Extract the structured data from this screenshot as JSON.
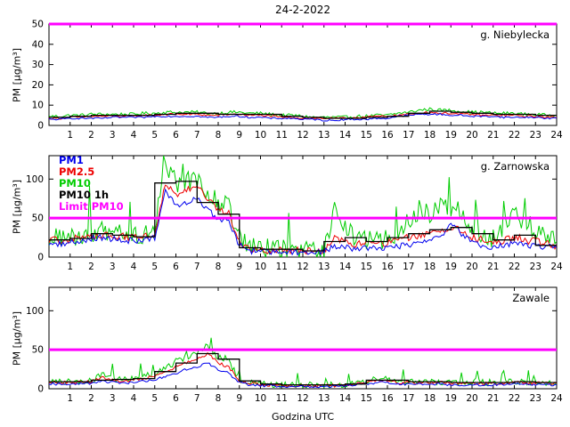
{
  "title": "24-2-2022",
  "xlabel": "Godzina UTC",
  "ylabel": "PM [µg/m³]",
  "colors": {
    "pm1": "#0000ee",
    "pm25": "#ee0000",
    "pm10": "#00cc00",
    "pm10_1h": "#000000",
    "limit": "#ff00ff",
    "frame": "#000000",
    "background": "#ffffff"
  },
  "legend": [
    {
      "label": "PM1",
      "color_key": "pm1"
    },
    {
      "label": "PM2.5",
      "color_key": "pm25"
    },
    {
      "label": "PM10",
      "color_key": "pm10"
    },
    {
      "label": "PM10 1h",
      "color_key": "pm10_1h"
    },
    {
      "label": "Limit PM10",
      "color_key": "limit"
    }
  ],
  "chart_data": [
    {
      "type": "line",
      "station": "g. Niebylecka",
      "ylim": [
        0,
        50
      ],
      "yticks": [
        0,
        10,
        20,
        30,
        40,
        50
      ],
      "xticks": [
        1,
        2,
        3,
        4,
        5,
        6,
        7,
        8,
        9,
        10,
        11,
        12,
        13,
        14,
        15,
        16,
        17,
        18,
        19,
        20,
        21,
        22,
        23,
        24
      ],
      "limit_value": 50,
      "x_start": 0,
      "x_step": 0.5,
      "series": [
        {
          "name": "PM10",
          "color_key": "pm10",
          "noise": 0.8,
          "spike": false,
          "values": [
            4.5,
            4.5,
            5,
            5,
            5.5,
            5.5,
            5.5,
            5.5,
            5.5,
            6,
            6,
            6.5,
            6.5,
            6.5,
            6.5,
            6,
            6,
            6.5,
            6.5,
            6,
            6,
            5.5,
            5,
            5,
            4.5,
            4,
            4,
            4,
            4,
            4.5,
            4.5,
            5,
            5,
            6,
            6.5,
            7.5,
            8,
            7.5,
            7.5,
            7,
            6.5,
            6.5,
            6,
            6,
            6,
            5.5,
            5.5,
            5,
            5
          ]
        },
        {
          "name": "PM2.5",
          "color_key": "pm25",
          "noise": 0.5,
          "spike": false,
          "values": [
            3.5,
            3.5,
            4,
            4,
            4.5,
            4.5,
            4.5,
            4.5,
            4.5,
            5,
            5,
            5.5,
            5.5,
            5.5,
            5.5,
            5,
            5,
            5.5,
            5.5,
            5,
            5,
            4.5,
            4,
            4,
            3.5,
            3.5,
            3.5,
            3.5,
            3.5,
            4,
            4,
            4.5,
            4.5,
            5,
            5.5,
            6,
            6.5,
            6,
            6,
            5.5,
            5.5,
            5,
            5,
            5,
            5,
            4.5,
            4.5,
            4,
            4
          ]
        },
        {
          "name": "PM1",
          "color_key": "pm1",
          "noise": 0.4,
          "spike": false,
          "values": [
            3,
            3,
            3.5,
            3.5,
            3.5,
            3.5,
            4,
            4,
            4,
            4,
            4.5,
            4.5,
            4.5,
            4.5,
            4.5,
            4,
            4,
            4.5,
            4.5,
            4,
            4,
            3.5,
            3.5,
            3.5,
            3,
            3,
            2.5,
            2.5,
            3,
            3,
            3,
            3.5,
            3.5,
            4.5,
            5,
            5.5,
            5.5,
            5.5,
            5,
            5,
            4.5,
            4.5,
            4.5,
            4,
            4,
            4,
            4,
            3.5,
            3.5
          ]
        }
      ],
      "step_series": {
        "name": "PM10 1h",
        "color_key": "pm10_1h",
        "values": [
          4,
          4.5,
          5,
          5,
          5,
          5.5,
          6,
          6,
          5.5,
          5.5,
          5.5,
          4.5,
          4,
          3.5,
          3.5,
          4,
          4.5,
          6,
          7,
          6.5,
          6,
          5.5,
          5.5,
          5
        ]
      }
    },
    {
      "type": "line",
      "station": "g. Zarnowska",
      "ylim": [
        0,
        130
      ],
      "yticks": [
        0,
        50,
        100
      ],
      "xticks": [
        1,
        2,
        3,
        4,
        5,
        6,
        7,
        8,
        9,
        10,
        11,
        12,
        13,
        14,
        15,
        16,
        17,
        18,
        19,
        20,
        21,
        22,
        23,
        24
      ],
      "limit_value": 50,
      "x_start": 0,
      "x_step": 0.5,
      "series": [
        {
          "name": "PM10",
          "color_key": "pm10",
          "noise": 13,
          "spike": true,
          "values": [
            25,
            24,
            26,
            27,
            32,
            33,
            30,
            29,
            28,
            28,
            35,
            120,
            95,
            100,
            95,
            85,
            70,
            65,
            25,
            12,
            12,
            11,
            10,
            10,
            9,
            9,
            10,
            60,
            40,
            20,
            22,
            20,
            25,
            30,
            45,
            60,
            55,
            70,
            65,
            55,
            35,
            30,
            25,
            40,
            55,
            35,
            30,
            25,
            20
          ]
        },
        {
          "name": "PM2.5",
          "color_key": "pm25",
          "noise": 5,
          "spike": false,
          "values": [
            22,
            21,
            23,
            24,
            28,
            29,
            27,
            26,
            25,
            25,
            30,
            95,
            80,
            85,
            90,
            75,
            60,
            55,
            20,
            10,
            10,
            9,
            9,
            9,
            8,
            8,
            9,
            25,
            20,
            16,
            17,
            16,
            18,
            20,
            25,
            28,
            30,
            35,
            38,
            35,
            25,
            22,
            18,
            22,
            25,
            22,
            20,
            18,
            15
          ]
        },
        {
          "name": "PM1",
          "color_key": "pm1",
          "noise": 4,
          "spike": false,
          "values": [
            18,
            17,
            19,
            20,
            24,
            25,
            23,
            22,
            21,
            21,
            25,
            85,
            65,
            70,
            75,
            60,
            50,
            45,
            15,
            8,
            8,
            7,
            7,
            7,
            6,
            6,
            7,
            15,
            12,
            11,
            12,
            11,
            12,
            14,
            16,
            18,
            20,
            25,
            45,
            30,
            18,
            15,
            12,
            15,
            18,
            15,
            14,
            13,
            12
          ]
        }
      ],
      "step_series": {
        "name": "PM10 1h",
        "color_key": "pm10_1h",
        "values": [
          22,
          24,
          30,
          28,
          26,
          95,
          97,
          70,
          55,
          12,
          10,
          10,
          8,
          20,
          25,
          20,
          25,
          30,
          35,
          38,
          30,
          22,
          28,
          15
        ]
      }
    },
    {
      "type": "line",
      "station": "Zawale",
      "ylim": [
        0,
        130
      ],
      "yticks": [
        0,
        50,
        100
      ],
      "xticks": [
        1,
        2,
        3,
        4,
        5,
        6,
        7,
        8,
        9,
        10,
        11,
        12,
        13,
        14,
        15,
        16,
        17,
        18,
        19,
        20,
        21,
        22,
        23,
        24
      ],
      "limit_value": 50,
      "x_start": 0,
      "x_step": 0.5,
      "series": [
        {
          "name": "PM10",
          "color_key": "pm10",
          "noise": 4,
          "spike": true,
          "values": [
            10,
            10,
            9,
            9,
            10,
            20,
            13,
            11,
            13,
            16,
            20,
            25,
            35,
            40,
            45,
            55,
            40,
            35,
            12,
            8,
            6,
            6,
            5,
            5,
            5,
            5,
            5,
            5,
            6,
            7,
            10,
            12,
            12,
            10,
            9,
            9,
            9,
            9,
            8,
            8,
            8,
            8,
            8,
            8,
            9,
            9,
            8,
            8,
            8
          ]
        },
        {
          "name": "PM2.5",
          "color_key": "pm25",
          "noise": 2,
          "spike": false,
          "values": [
            8,
            8,
            8,
            8,
            9,
            15,
            11,
            9,
            11,
            13,
            16,
            20,
            28,
            33,
            38,
            45,
            33,
            28,
            10,
            7,
            5,
            5,
            4,
            4,
            4,
            4,
            4,
            4,
            5,
            6,
            8,
            10,
            10,
            8,
            8,
            8,
            8,
            8,
            7,
            7,
            7,
            7,
            7,
            7,
            8,
            8,
            7,
            7,
            7
          ]
        },
        {
          "name": "PM1",
          "color_key": "pm1",
          "noise": 1.5,
          "spike": false,
          "values": [
            6,
            6,
            6,
            6,
            7,
            10,
            8,
            7,
            8,
            10,
            12,
            15,
            20,
            25,
            28,
            33,
            25,
            20,
            8,
            5,
            4,
            4,
            3,
            3,
            3,
            3,
            3,
            3,
            4,
            5,
            6,
            8,
            8,
            6,
            6,
            6,
            6,
            6,
            5,
            5,
            5,
            5,
            5,
            5,
            6,
            6,
            5,
            5,
            5
          ]
        }
      ],
      "step_series": {
        "name": "PM10 1h",
        "color_key": "pm10_1h",
        "values": [
          9,
          9,
          11,
          12,
          13,
          22,
          33,
          45,
          38,
          10,
          6,
          5,
          5,
          5,
          6,
          11,
          11,
          9,
          9,
          8,
          8,
          8,
          9,
          8
        ]
      }
    }
  ]
}
